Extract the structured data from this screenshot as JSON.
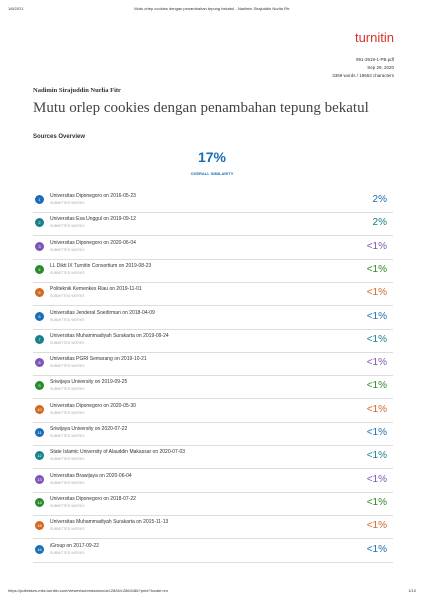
{
  "header": {
    "date": "1/6/2021",
    "page_title": "Mutu orlep cookies dengan penambahan tepung bekatul - Nadimin Sirajuddin Nurlia Fitr"
  },
  "logo": "turnitin",
  "meta": {
    "filename": "991-3519-1-PB.pdf",
    "date": "Sep 29, 2020",
    "counts": "3369 words / 19663 characters"
  },
  "author": "Nadimin Sirajuddin Nurlia Fitr",
  "title": "Mutu orlep cookies dengan penambahan tepung bekatul",
  "section": "Sources Overview",
  "overall": {
    "value": "17%",
    "label": "OVERALL SIMILARITY"
  },
  "sources": [
    {
      "number": "1",
      "name": "Universitas Diponegoro on 2016-05-23",
      "type": "SUBMITTED WORKS",
      "percent": "2%"
    },
    {
      "number": "2",
      "name": "Universitas Esa Unggul on 2019-09-12",
      "type": "SUBMITTED WORKS",
      "percent": "2%"
    },
    {
      "number": "3",
      "name": "Universitas Diponegoro on 2020-06-04",
      "type": "SUBMITTED WORKS",
      "percent": "<1%"
    },
    {
      "number": "4",
      "name": "LL Dikti IX Turnitin Consortium on 2019-08-23",
      "type": "SUBMITTED WORKS",
      "percent": "<1%"
    },
    {
      "number": "5",
      "name": "Politeknik Kemenkes Riau on 2019-11-01",
      "type": "SUBMITTED WORKS",
      "percent": "<1%"
    },
    {
      "number": "6",
      "name": "Universitas Jenderal Soedirman on 2018-04-09",
      "type": "SUBMITTED WORKS",
      "percent": "<1%"
    },
    {
      "number": "7",
      "name": "Universitas Muhammadiyah Surakarta on 2019-09-24",
      "type": "SUBMITTED WORKS",
      "percent": "<1%"
    },
    {
      "number": "8",
      "name": "Universitas PGRI Semarang on 2019-10-21",
      "type": "SUBMITTED WORKS",
      "percent": "<1%"
    },
    {
      "number": "9",
      "name": "Sriwijaya University on 2019-09-25",
      "type": "SUBMITTED WORKS",
      "percent": "<1%"
    },
    {
      "number": "10",
      "name": "Universitas Diponegoro on 2020-05-30",
      "type": "SUBMITTED WORKS",
      "percent": "<1%"
    },
    {
      "number": "11",
      "name": "Sriwijaya University on 2020-07-22",
      "type": "SUBMITTED WORKS",
      "percent": "<1%"
    },
    {
      "number": "12",
      "name": "State Islamic University of Alauddin Makassar on 2020-07-03",
      "type": "SUBMITTED WORKS",
      "percent": "<1%"
    },
    {
      "number": "13",
      "name": "Universitas Brawijaya on 2020-06-04",
      "type": "SUBMITTED WORKS",
      "percent": "<1%"
    },
    {
      "number": "14",
      "name": "Universitas Diponegoro on 2018-07-22",
      "type": "SUBMITTED WORKS",
      "percent": "<1%"
    },
    {
      "number": "15",
      "name": "Universitas Muhammadiyah Surakarta on 2015-11-13",
      "type": "SUBMITTED WORKS",
      "percent": "<1%"
    },
    {
      "number": "16",
      "name": "iGroup on 2017-09-22",
      "type": "SUBMITTED WORKS",
      "percent": "<1%"
    }
  ],
  "footer": {
    "url": "https://poltekkes-mks.turnitin.com/viewer/submissions/oid:28284:2864186?print?locale=en",
    "page": "1/10"
  }
}
